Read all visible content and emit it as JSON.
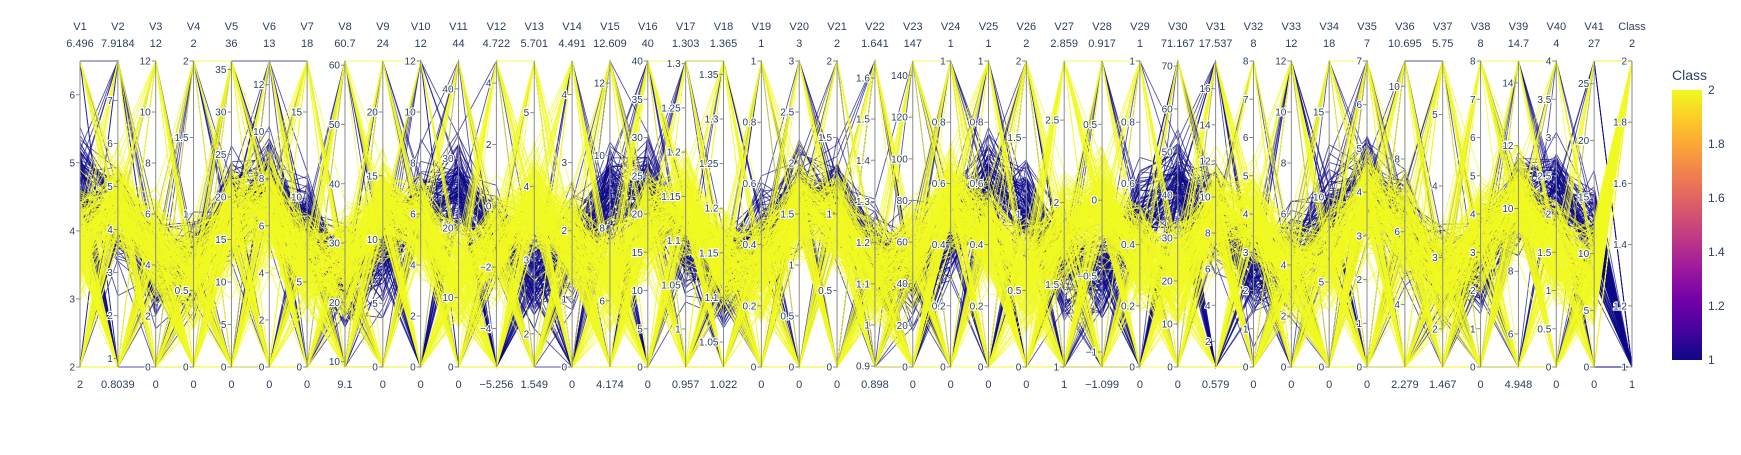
{
  "chart_data": {
    "type": "parcoords",
    "title": "",
    "dimensions": [
      {
        "label": "V1",
        "range": [
          2,
          6.496
        ],
        "ticks": [
          2,
          3,
          4,
          5,
          6
        ]
      },
      {
        "label": "V2",
        "range": [
          0.8039,
          7.9184
        ],
        "ticks": [
          1,
          2,
          3,
          4,
          5,
          6,
          7
        ]
      },
      {
        "label": "V3",
        "range": [
          0,
          12
        ],
        "ticks": [
          0,
          2,
          4,
          6,
          8,
          10,
          12
        ]
      },
      {
        "label": "V4",
        "range": [
          0,
          2
        ],
        "ticks": [
          0,
          0.5,
          1,
          1.5,
          2
        ]
      },
      {
        "label": "V5",
        "range": [
          0,
          36
        ],
        "ticks": [
          0,
          5,
          10,
          15,
          20,
          25,
          30,
          35
        ]
      },
      {
        "label": "V6",
        "range": [
          0,
          13
        ],
        "ticks": [
          0,
          2,
          4,
          6,
          8,
          10,
          12
        ]
      },
      {
        "label": "V7",
        "range": [
          0,
          18
        ],
        "ticks": [
          0,
          5,
          10,
          15
        ]
      },
      {
        "label": "V8",
        "range": [
          9.1,
          60.7
        ],
        "ticks": [
          10,
          20,
          30,
          40,
          50,
          60
        ]
      },
      {
        "label": "V9",
        "range": [
          0,
          24
        ],
        "ticks": [
          0,
          5,
          10,
          15,
          20
        ]
      },
      {
        "label": "V10",
        "range": [
          0,
          12
        ],
        "ticks": [
          0,
          2,
          4,
          6,
          8,
          10,
          12
        ]
      },
      {
        "label": "V11",
        "range": [
          0,
          44
        ],
        "ticks": [
          0,
          10,
          20,
          30,
          40
        ]
      },
      {
        "label": "V12",
        "range": [
          -5.256,
          4.722
        ],
        "ticks": [
          -4,
          -2,
          0,
          2,
          4
        ]
      },
      {
        "label": "V13",
        "range": [
          1.549,
          5.701
        ],
        "ticks": [
          2,
          3,
          4,
          5
        ]
      },
      {
        "label": "V14",
        "range": [
          0,
          4.491
        ],
        "ticks": [
          0,
          1,
          2,
          3,
          4
        ]
      },
      {
        "label": "V15",
        "range": [
          4.174,
          12.609
        ],
        "ticks": [
          6,
          8,
          10,
          12
        ]
      },
      {
        "label": "V16",
        "range": [
          0,
          40
        ],
        "ticks": [
          0,
          5,
          10,
          15,
          20,
          25,
          30,
          35,
          40
        ]
      },
      {
        "label": "V17",
        "range": [
          0.957,
          1.303
        ],
        "ticks": [
          1,
          1.05,
          1.1,
          1.15,
          1.2,
          1.25,
          1.3
        ]
      },
      {
        "label": "V18",
        "range": [
          1.022,
          1.365
        ],
        "ticks": [
          1.05,
          1.1,
          1.15,
          1.2,
          1.25,
          1.3,
          1.35
        ]
      },
      {
        "label": "V19",
        "range": [
          0,
          1
        ],
        "ticks": [
          0,
          0.2,
          0.4,
          0.6,
          0.8,
          1
        ]
      },
      {
        "label": "V20",
        "range": [
          0,
          3
        ],
        "ticks": [
          0,
          0.5,
          1,
          1.5,
          2,
          2.5,
          3
        ]
      },
      {
        "label": "V21",
        "range": [
          0,
          2
        ],
        "ticks": [
          0,
          0.5,
          1,
          1.5,
          2
        ]
      },
      {
        "label": "V22",
        "range": [
          0.898,
          1.641
        ],
        "ticks": [
          0.9,
          1,
          1.1,
          1.2,
          1.3,
          1.4,
          1.5,
          1.6
        ]
      },
      {
        "label": "V23",
        "range": [
          0,
          147
        ],
        "ticks": [
          0,
          20,
          40,
          60,
          80,
          100,
          120,
          140
        ]
      },
      {
        "label": "V24",
        "range": [
          0,
          1
        ],
        "ticks": [
          0,
          0.2,
          0.4,
          0.6,
          0.8,
          1
        ]
      },
      {
        "label": "V25",
        "range": [
          0,
          1
        ],
        "ticks": [
          0,
          0.2,
          0.4,
          0.6,
          0.8,
          1
        ]
      },
      {
        "label": "V26",
        "range": [
          0,
          2
        ],
        "ticks": [
          0,
          0.5,
          1,
          1.5,
          2
        ]
      },
      {
        "label": "V27",
        "range": [
          1,
          2.859
        ],
        "ticks": [
          1,
          1.5,
          2,
          2.5
        ]
      },
      {
        "label": "V28",
        "range": [
          -1.099,
          0.917
        ],
        "ticks": [
          -1,
          -0.5,
          0,
          0.5
        ]
      },
      {
        "label": "V29",
        "range": [
          0,
          1
        ],
        "ticks": [
          0,
          0.2,
          0.4,
          0.6,
          0.8,
          1
        ]
      },
      {
        "label": "V30",
        "range": [
          0,
          71.167
        ],
        "ticks": [
          0,
          10,
          20,
          30,
          40,
          50,
          60,
          70
        ]
      },
      {
        "label": "V31",
        "range": [
          0.579,
          17.537
        ],
        "ticks": [
          2,
          4,
          6,
          8,
          10,
          12,
          14,
          16
        ]
      },
      {
        "label": "V32",
        "range": [
          0,
          8
        ],
        "ticks": [
          0,
          1,
          2,
          3,
          4,
          5,
          6,
          7,
          8
        ]
      },
      {
        "label": "V33",
        "range": [
          0,
          12
        ],
        "ticks": [
          0,
          2,
          4,
          6,
          8,
          10,
          12
        ]
      },
      {
        "label": "V34",
        "range": [
          0,
          18
        ],
        "ticks": [
          0,
          5,
          10,
          15
        ]
      },
      {
        "label": "V35",
        "range": [
          0,
          7
        ],
        "ticks": [
          0,
          1,
          2,
          3,
          4,
          5,
          6,
          7
        ]
      },
      {
        "label": "V36",
        "range": [
          2.279,
          10.695
        ],
        "ticks": [
          4,
          6,
          8,
          10
        ]
      },
      {
        "label": "V37",
        "range": [
          1.467,
          5.75
        ],
        "ticks": [
          2,
          3,
          4,
          5
        ]
      },
      {
        "label": "V38",
        "range": [
          0,
          8
        ],
        "ticks": [
          0,
          1,
          2,
          3,
          4,
          5,
          6,
          7,
          8
        ]
      },
      {
        "label": "V39",
        "range": [
          4.948,
          14.7
        ],
        "ticks": [
          6,
          8,
          10,
          12,
          14
        ]
      },
      {
        "label": "V40",
        "range": [
          0,
          4
        ],
        "ticks": [
          0,
          0.5,
          1,
          1.5,
          2,
          2.5,
          3,
          3.5,
          4
        ]
      },
      {
        "label": "V41",
        "range": [
          0,
          27
        ],
        "ticks": [
          0,
          5,
          10,
          15,
          20,
          25
        ]
      },
      {
        "label": "Class",
        "range": [
          1,
          2
        ],
        "ticks": [
          1,
          1.2,
          1.4,
          1.6,
          1.8,
          2
        ]
      }
    ],
    "range_labels": {
      "top": [
        "6.496",
        "7.9184",
        "12",
        "2",
        "36",
        "13",
        "18",
        "60.7",
        "24",
        "12",
        "44",
        "4.722",
        "5.701",
        "4.491",
        "12.609",
        "40",
        "1.303",
        "1.365",
        "1",
        "3",
        "2",
        "1.641",
        "147",
        "1",
        "1",
        "2",
        "2.859",
        "0.917",
        "1",
        "71.167",
        "17.537",
        "8",
        "12",
        "18",
        "7",
        "10.695",
        "5.75",
        "8",
        "14.7",
        "4",
        "27",
        "2"
      ],
      "bottom": [
        "2",
        "0.8039",
        "0",
        "0",
        "0",
        "0",
        "0",
        "9.1",
        "0",
        "0",
        "0",
        "−5.256",
        "1.549",
        "0",
        "4.174",
        "0",
        "0.957",
        "1.022",
        "0",
        "0",
        "0",
        "0.898",
        "0",
        "0",
        "0",
        "0",
        "1",
        "−1.099",
        "0",
        "0",
        "0.579",
        "0",
        "0",
        "0",
        "0",
        "2.279",
        "1.467",
        "0",
        "4.948",
        "0",
        "0",
        "1"
      ]
    },
    "colorbar": {
      "title": "Class",
      "range": [
        1,
        2
      ],
      "ticks": [
        1,
        1.2,
        1.4,
        1.6,
        1.8,
        2
      ],
      "tick_labels": [
        "1",
        "1.2",
        "1.4",
        "1.6",
        "1.8",
        "2"
      ],
      "colorscale": [
        "#0d0887",
        "#46039f",
        "#7201a8",
        "#9c179e",
        "#bd3786",
        "#d8576b",
        "#ed7953",
        "#fb9f3a",
        "#fdca26",
        "#f0f921"
      ]
    },
    "line_colors": {
      "class_1": "#0d0887",
      "class_2": "#f0f921"
    },
    "grid": false,
    "legend": "colorbar-right"
  }
}
